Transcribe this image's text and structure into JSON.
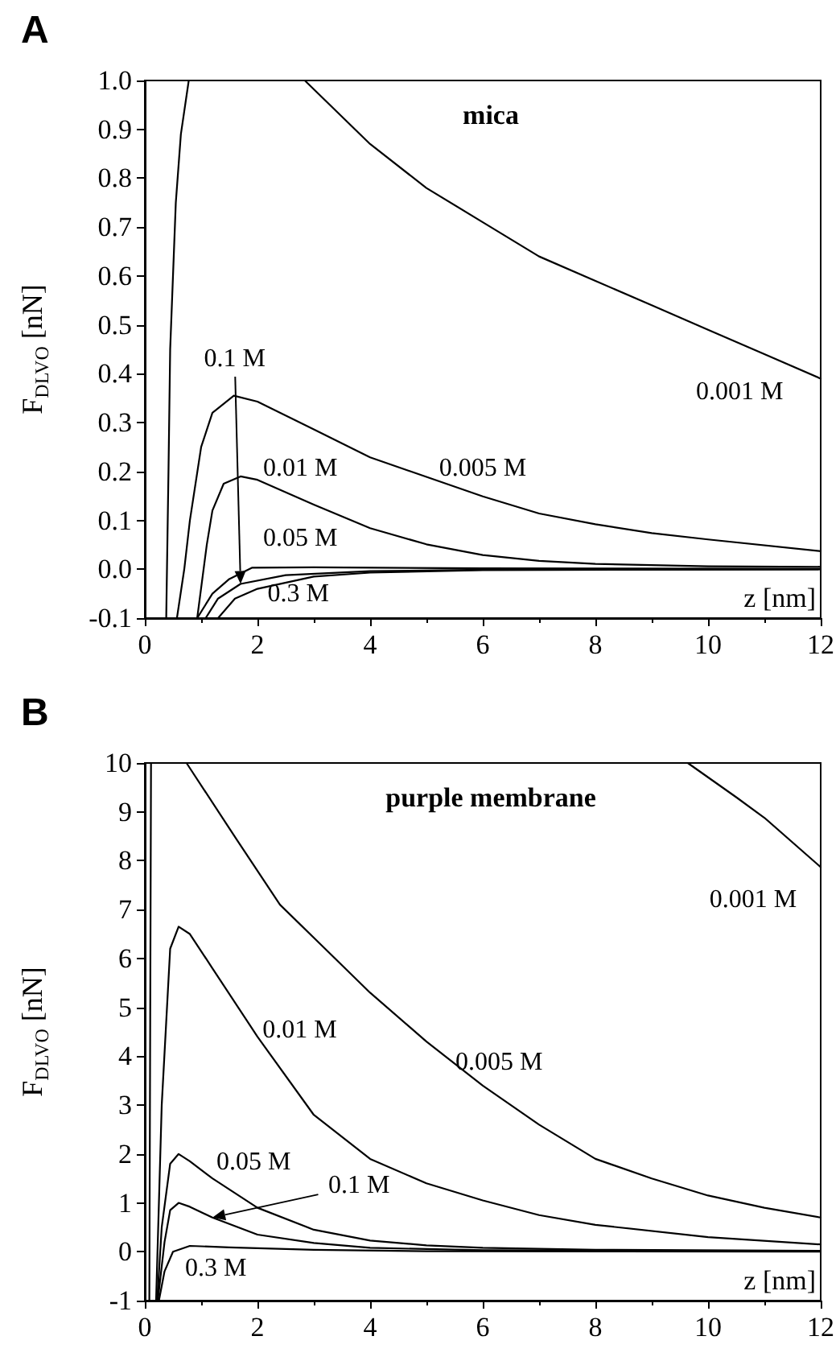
{
  "chart_data": [
    {
      "type": "line",
      "title": "A",
      "subtitle": "mica",
      "xlabel": "z [nm]",
      "ylabel": "F$_{DLVO}$ [nN]",
      "xlim": [
        0,
        12
      ],
      "ylim": [
        -0.1,
        1.0
      ],
      "xticks": [
        0,
        2,
        4,
        6,
        8,
        10,
        12
      ],
      "yticks": [
        -0.1,
        {
          "value": 0,
          "label": "0.0"
        },
        0.1,
        0.2,
        0.3,
        0.4,
        0.5,
        0.6,
        0.7,
        0.8,
        0.9,
        {
          "value": 1,
          "label": "1.0"
        }
      ],
      "marker": "none",
      "line_style": "solid",
      "series": [
        {
          "color": "#000000",
          "x": [
            0.38,
            0.42,
            0.45,
            0.55,
            0.64,
            0.78,
            1.5,
            2.84,
            4,
            5,
            6,
            7,
            8,
            9,
            10,
            11,
            12
          ],
          "values": [
            -0.1,
            0.2,
            0.45,
            0.75,
            0.89,
            1.0,
            null,
            1.0,
            0.87,
            0.78,
            0.71,
            0.64,
            0.59,
            0.54,
            0.49,
            0.44,
            0.39
          ]
        },
        {
          "color": "#000000",
          "x": [
            0.57,
            0.7,
            0.8,
            1.0,
            1.2,
            1.58,
            2,
            3,
            4,
            5,
            6,
            7,
            8,
            9,
            10,
            12
          ],
          "values": [
            -0.1,
            0,
            0.1,
            0.25,
            0.32,
            0.355,
            0.343,
            0.286,
            0.229,
            0.189,
            0.149,
            0.114,
            0.092,
            0.074,
            0.061,
            0.037
          ]
        },
        {
          "color": "#000000",
          "x": [
            0.93,
            1.1,
            1.2,
            1.4,
            1.7,
            2,
            3,
            4,
            5,
            6,
            7,
            8,
            10,
            12
          ],
          "values": [
            -0.1,
            0.05,
            0.12,
            0.175,
            0.19,
            0.183,
            0.132,
            0.084,
            0.051,
            0.029,
            0.017,
            0.011,
            0.006,
            0.005
          ]
        },
        {
          "color": "#000000",
          "x": [
            0.93,
            1.2,
            1.5,
            1.9,
            3,
            6,
            12
          ],
          "values": [
            -0.1,
            -0.05,
            -0.02,
            0.003,
            0.004,
            0.002,
            0.001
          ]
        },
        {
          "color": "#000000",
          "x": [
            1.08,
            1.3,
            1.7,
            2.5,
            4,
            6,
            12
          ],
          "values": [
            -0.1,
            -0.06,
            -0.03,
            -0.012,
            -0.004,
            -0.001,
            0
          ]
        },
        {
          "color": "#000000",
          "x": [
            1.3,
            1.6,
            2,
            3,
            4,
            6,
            12
          ],
          "values": [
            -0.1,
            -0.06,
            -0.04,
            -0.015,
            -0.007,
            -0.002,
            0
          ]
        }
      ],
      "annotations": [
        "0.001 M",
        {
          "text": "0.1 M",
          "x": 1.7,
          "y": -0.03
        },
        "0.01 M",
        "0.005 M",
        "0.05 M",
        "0.3 M"
      ]
    },
    {
      "type": "line",
      "title": "B",
      "subtitle": "purple membrane",
      "xlabel": "z [nm]",
      "ylabel": "F$_{DLVO}$ [nN]",
      "xlim": [
        0,
        12
      ],
      "ylim": [
        -1,
        10
      ],
      "xticks": [
        0,
        2,
        4,
        6,
        8,
        10,
        12
      ],
      "yticks": [
        -1,
        0,
        1,
        2,
        3,
        4,
        5,
        6,
        7,
        8,
        9,
        10
      ],
      "marker": "none",
      "line_style": "solid",
      "series": [
        {
          "color": "#000000",
          "x": [
            0.08,
            0.11,
            5,
            9.64,
            10.5,
            11,
            12
          ],
          "values": [
            -1,
            10,
            null,
            10,
            9.3,
            8.88,
            7.87
          ]
        },
        {
          "color": "#000000",
          "x": [
            0.74,
            1.65,
            2.4,
            3.2,
            4,
            5,
            6,
            7,
            8,
            9,
            10,
            11,
            12
          ],
          "values": [
            10,
            8.4,
            7.1,
            6.2,
            5.3,
            4.3,
            3.4,
            2.6,
            1.9,
            1.5,
            1.15,
            0.9,
            0.7
          ]
        },
        {
          "color": "#000000",
          "x": [
            0.2,
            0.3,
            0.45,
            0.6,
            0.8,
            1.2,
            2,
            3,
            4,
            5,
            6,
            7,
            8,
            10,
            12
          ],
          "values": [
            -1,
            3,
            6.2,
            6.65,
            6.5,
            5.8,
            4.4,
            2.8,
            1.9,
            1.4,
            1.05,
            0.75,
            0.55,
            0.3,
            0.15
          ]
        },
        {
          "color": "#000000",
          "x": [
            0.22,
            0.3,
            0.45,
            0.6,
            0.8,
            1.2,
            2,
            3,
            4,
            5,
            6,
            8,
            12
          ],
          "values": [
            -1,
            0.5,
            1.8,
            2.0,
            1.85,
            1.5,
            0.9,
            0.45,
            0.23,
            0.13,
            0.08,
            0.04,
            0.02
          ]
        },
        {
          "color": "#000000",
          "x": [
            0.23,
            0.35,
            0.45,
            0.6,
            0.8,
            1.2,
            2,
            3,
            4,
            6,
            12
          ],
          "values": [
            -1,
            0.2,
            0.85,
            1.0,
            0.92,
            0.7,
            0.35,
            0.18,
            0.08,
            0.03,
            0.01
          ]
        },
        {
          "color": "#000000",
          "x": [
            0.25,
            0.35,
            0.5,
            0.8,
            1.5,
            3,
            5,
            12
          ],
          "values": [
            -1,
            -0.4,
            0,
            0.12,
            0.09,
            0.04,
            0.01,
            0
          ]
        }
      ],
      "annotations": [
        "0.001 M",
        "0.01 M",
        "0.005 M",
        "0.05 M",
        {
          "text": "0.1 M",
          "x": 1.2,
          "y": 0.7
        },
        "0.3 M"
      ]
    }
  ]
}
